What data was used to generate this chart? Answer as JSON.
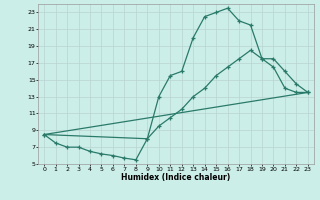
{
  "xlabel": "Humidex (Indice chaleur)",
  "bg_color": "#cceee8",
  "grid_color": "#b8d4d0",
  "line_color": "#2a7a6a",
  "xlim": [
    -0.5,
    23.5
  ],
  "ylim": [
    5,
    24
  ],
  "xticks": [
    0,
    1,
    2,
    3,
    4,
    5,
    6,
    7,
    8,
    9,
    10,
    11,
    12,
    13,
    14,
    15,
    16,
    17,
    18,
    19,
    20,
    21,
    22,
    23
  ],
  "yticks": [
    5,
    7,
    9,
    11,
    13,
    15,
    17,
    19,
    21,
    23
  ],
  "line1_x": [
    0,
    1,
    2,
    3,
    4,
    5,
    6,
    7,
    8,
    9,
    10,
    11,
    12,
    13,
    14,
    15,
    16,
    17,
    18,
    19,
    20,
    21,
    22,
    23
  ],
  "line1_y": [
    8.5,
    7.5,
    7.0,
    7.0,
    6.5,
    6.2,
    6.0,
    5.7,
    5.5,
    8.0,
    13.0,
    15.5,
    16.0,
    20.0,
    22.5,
    23.0,
    23.5,
    22.0,
    21.5,
    17.5,
    16.5,
    14.0,
    13.5,
    13.5
  ],
  "line2_x": [
    0,
    9,
    10,
    11,
    12,
    13,
    14,
    15,
    16,
    17,
    18,
    19,
    20,
    21,
    22,
    23
  ],
  "line2_y": [
    8.5,
    8.0,
    9.5,
    10.5,
    11.5,
    13.0,
    14.0,
    15.5,
    16.5,
    17.5,
    18.5,
    17.5,
    17.5,
    16.0,
    14.5,
    13.5
  ],
  "line3_x": [
    0,
    23
  ],
  "line3_y": [
    8.5,
    13.5
  ]
}
